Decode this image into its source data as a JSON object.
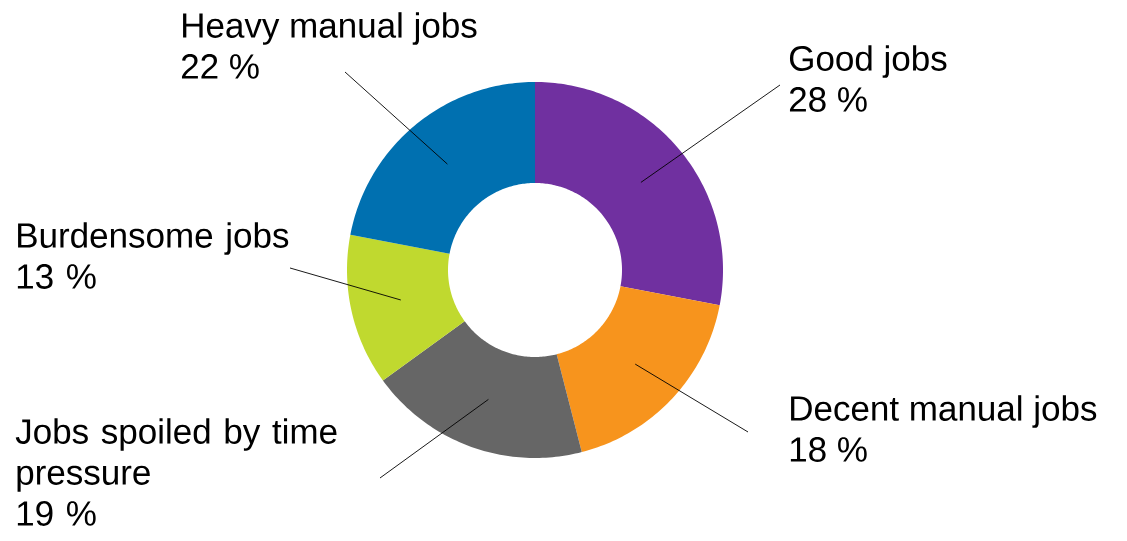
{
  "chart_data": {
    "type": "donut",
    "categories": [
      "Good jobs",
      "Decent manual jobs",
      "Jobs spoiled by time pressure",
      "Burdensome jobs",
      "Heavy manual jobs"
    ],
    "values": [
      28,
      18,
      19,
      13,
      22
    ],
    "value_labels": [
      "28 %",
      "18 %",
      "19 %",
      "13 %",
      "22 %"
    ],
    "colors": [
      "#7030a0",
      "#f7941d",
      "#666666",
      "#c0d92f",
      "#0070b0"
    ]
  }
}
